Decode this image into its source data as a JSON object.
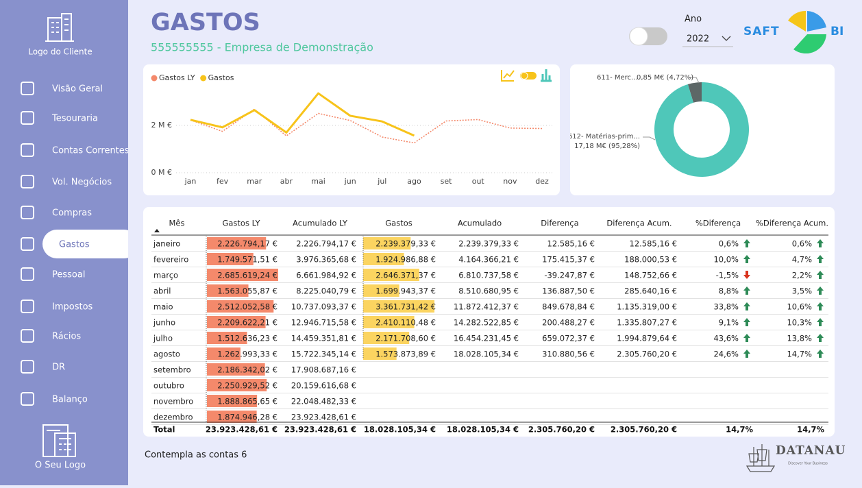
{
  "sidebar": {
    "client_logo": "Logo do Cliente",
    "items": [
      "Visão Geral",
      "Tesouraria",
      "Contas Correntes",
      "Vol. Negócios",
      "Compras",
      "Gastos",
      "Pessoal",
      "Impostos",
      "Rácios",
      "DR",
      "Balanço"
    ],
    "active": "Gastos",
    "your_logo": "O Seu Logo"
  },
  "header": {
    "title": "GASTOS",
    "subtitle": "555555555 - Empresa de Demonstração",
    "year_label": "Ano",
    "year": "2022",
    "brand_left": "SAFT",
    "brand_right": "BI"
  },
  "chart_data": [
    {
      "type": "line",
      "categories": [
        "jan",
        "fev",
        "mar",
        "abr",
        "mai",
        "jun",
        "jul",
        "ago",
        "set",
        "out",
        "nov",
        "dez"
      ],
      "series": [
        {
          "name": "Gastos LY",
          "color": "#f4896b",
          "values": [
            2.23,
            1.75,
            2.69,
            1.56,
            2.51,
            2.21,
            1.51,
            1.26,
            2.19,
            2.25,
            1.89,
            1.87
          ]
        },
        {
          "name": "Gastos",
          "color": "#f7c31a",
          "values": [
            2.24,
            1.92,
            2.65,
            1.7,
            3.36,
            2.41,
            2.17,
            1.57,
            null,
            null,
            null,
            null
          ]
        }
      ],
      "ylim": [
        0,
        3.8
      ],
      "yticks": [
        {
          "value": 0,
          "label": "0 M €"
        },
        {
          "value": 2,
          "label": "2 M €"
        }
      ],
      "grid": true,
      "legend": "top-left"
    },
    {
      "type": "donut",
      "categories": [
        "611- Merc...",
        "612- Matérias-prim..."
      ],
      "values": [
        4.72,
        95.28
      ],
      "value_labels": [
        "0,85 M€ (4,72%)",
        "17,18 M€ (95,28%)"
      ],
      "colors": [
        "#5d6767",
        "#4fc7b9"
      ]
    }
  ],
  "table": {
    "columns": [
      "Mês",
      "Gastos LY",
      "Acumulado LY",
      "Gastos",
      "Acumulado",
      "Diferença",
      "Diferença Acum.",
      "%Diferença",
      "%Diferença Acum."
    ],
    "rows": [
      [
        "janeiro",
        "2.226.794,17 €",
        "2.226.794,17 €",
        "2.239.379,33 €",
        "2.239.379,33 €",
        "12.585,16 €",
        "12.585,16 €",
        "0,6%",
        "0,6%"
      ],
      [
        "fevereiro",
        "1.749.571,51 €",
        "3.976.365,68 €",
        "1.924.986,88 €",
        "4.164.366,21 €",
        "175.415,37 €",
        "188.000,53 €",
        "10,0%",
        "4,7%"
      ],
      [
        "março",
        "2.685.619,24 €",
        "6.661.984,92 €",
        "2.646.371,37 €",
        "6.810.737,58 €",
        "-39.247,87 €",
        "148.752,66 €",
        "-1,5%",
        "2,2%"
      ],
      [
        "abril",
        "1.563.055,87 €",
        "8.225.040,79 €",
        "1.699.943,37 €",
        "8.510.680,95 €",
        "136.887,50 €",
        "285.640,16 €",
        "8,8%",
        "3,5%"
      ],
      [
        "maio",
        "2.512.052,58 €",
        "10.737.093,37 €",
        "3.361.731,42 €",
        "11.872.412,37 €",
        "849.678,84 €",
        "1.135.319,00 €",
        "33,8%",
        "10,6%"
      ],
      [
        "junho",
        "2.209.622,21 €",
        "12.946.715,58 €",
        "2.410.110,48 €",
        "14.282.522,85 €",
        "200.488,27 €",
        "1.335.807,27 €",
        "9,1%",
        "10,3%"
      ],
      [
        "julho",
        "1.512.636,23 €",
        "14.459.351,81 €",
        "2.171.708,60 €",
        "16.454.231,45 €",
        "659.072,37 €",
        "1.994.879,64 €",
        "43,6%",
        "13,8%"
      ],
      [
        "agosto",
        "1.262.993,33 €",
        "15.722.345,14 €",
        "1.573.873,89 €",
        "18.028.105,34 €",
        "310.880,56 €",
        "2.305.760,20 €",
        "24,6%",
        "14,7%"
      ],
      [
        "setembro",
        "2.186.342,02 €",
        "17.908.687,16 €"
      ],
      [
        "outubro",
        "2.250.929,52 €",
        "20.159.616,68 €"
      ],
      [
        "novembro",
        "1.888.865,65 €",
        "22.048.482,33 €"
      ],
      [
        "dezembro",
        "1.874.946,28 €",
        "23.923.428,61 €"
      ]
    ],
    "total": [
      "Total",
      "23.923.428,61 €",
      "23.923.428,61 €",
      "18.028.105,34 €",
      "18.028.105,34 €",
      "2.305.760,20 €",
      "2.305.760,20 €",
      "14,7%",
      "14,7%"
    ]
  },
  "footer": {
    "note": "Contempla as contas 6",
    "company": "DATANAU",
    "tagline": "Discover Your Business"
  }
}
